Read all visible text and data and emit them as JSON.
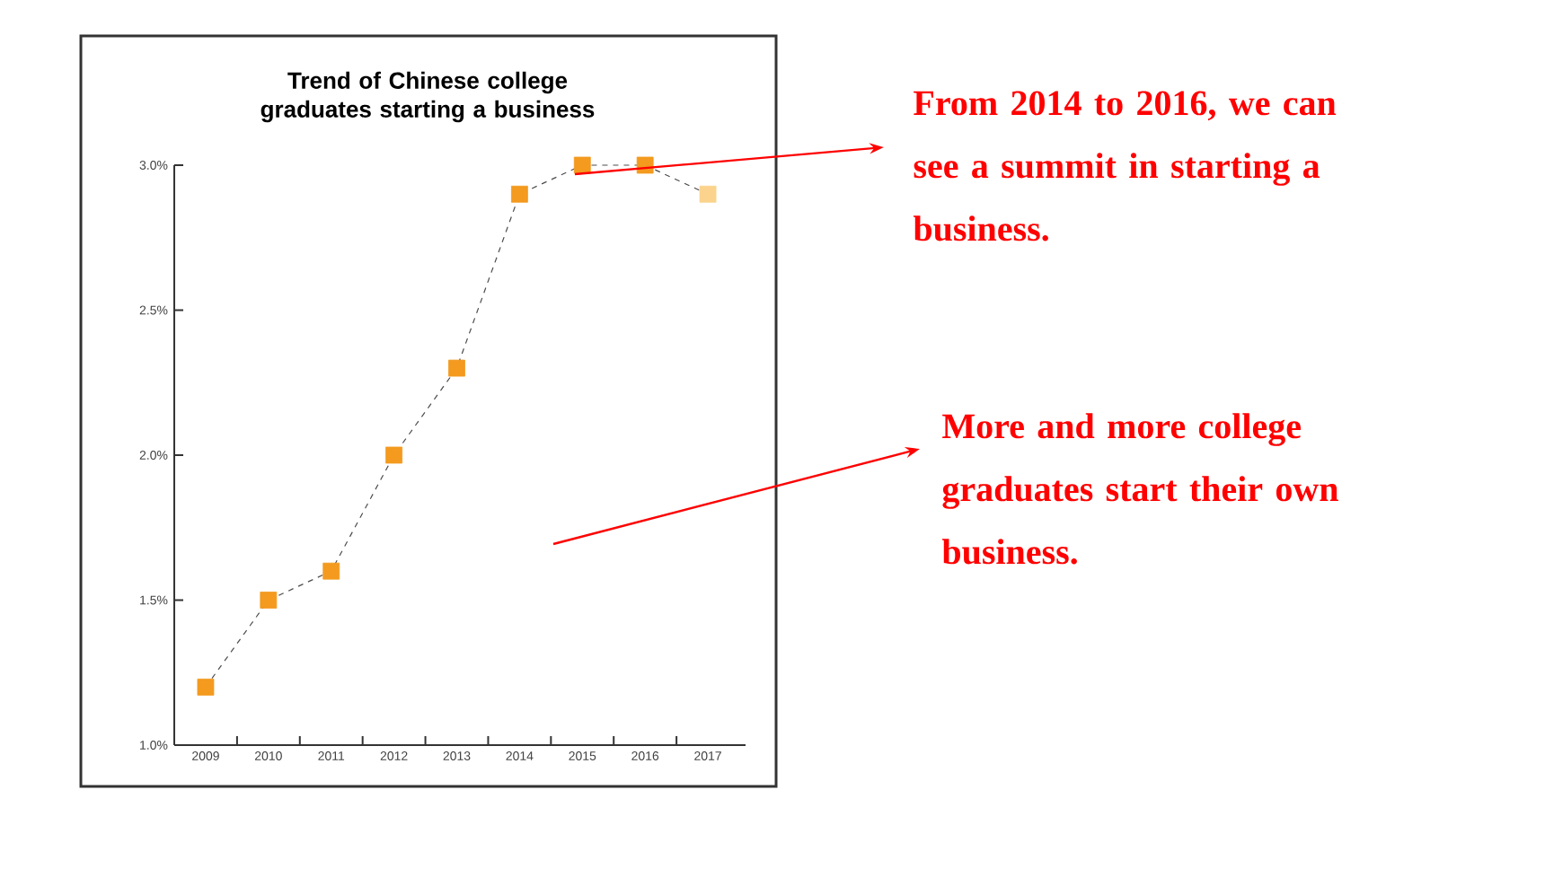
{
  "chart_data": {
    "type": "line",
    "title": "Trend of Chinese college graduates starting a business",
    "categories": [
      "2009",
      "2010",
      "2011",
      "2012",
      "2013",
      "2014",
      "2015",
      "2016",
      "2017"
    ],
    "series": [
      {
        "colors": [
          "#f39a1f",
          "#f39a1f",
          "#f39a1f",
          "#f39a1f",
          "#f39a1f",
          "#f39a1f",
          "#f39a1f",
          "#f39a1f",
          "#fbd38c"
        ],
        "values": [
          1.2,
          1.5,
          1.6,
          2.0,
          2.3,
          2.9,
          3.0,
          3.0,
          2.9
        ]
      }
    ],
    "ylim": [
      1.0,
      3.0
    ],
    "yticks": [
      {
        "value": 1.0,
        "label": "1.0%"
      },
      {
        "value": 1.5,
        "label": "1.5%"
      },
      {
        "value": 2.0,
        "label": "2.0%"
      },
      {
        "value": 2.5,
        "label": "2.5%"
      },
      {
        "value": 3.0,
        "label": "3.0%"
      }
    ],
    "marker": "square",
    "line_style": "dashed",
    "grid": false,
    "annotations": [
      "From 2014 to 2016, we can see a summit in starting a business.",
      "More and more college graduates start their own business."
    ]
  }
}
